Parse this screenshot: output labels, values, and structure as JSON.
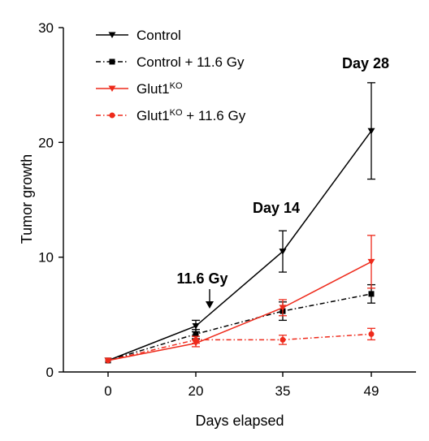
{
  "chart_data": {
    "type": "line",
    "xlabel": "Days elapsed",
    "ylabel": "Tumor  growth",
    "x": [
      0,
      20,
      35,
      49
    ],
    "x_tick_labels": [
      "0",
      "20",
      "35",
      "49"
    ],
    "ylim": [
      0,
      30
    ],
    "y_ticks": [
      0,
      10,
      20,
      30
    ],
    "y_tick_labels": [
      "0",
      "10",
      "20",
      "30"
    ],
    "grid": false,
    "legend_position": "top-left",
    "series": [
      {
        "name": "Control",
        "values": [
          1.0,
          4.0,
          10.5,
          21.0
        ],
        "errors": [
          0.1,
          0.5,
          1.8,
          4.2
        ],
        "color": "#000000",
        "line_style": "solid",
        "marker": "triangle-down"
      },
      {
        "name": "Control + 11.6 Gy",
        "values": [
          1.0,
          3.3,
          5.3,
          6.8
        ],
        "errors": [
          0.1,
          0.4,
          0.8,
          0.8
        ],
        "color": "#000000",
        "line_style": "dash-dot",
        "marker": "square"
      },
      {
        "name": "Glut1",
        "name_superscript": "KO",
        "values": [
          1.0,
          2.5,
          5.6,
          9.6
        ],
        "errors": [
          0.1,
          0.3,
          0.7,
          2.3
        ],
        "color": "#ee2a1b",
        "line_style": "solid",
        "marker": "triangle-down"
      },
      {
        "name": "Glut1",
        "name_superscript": "KO",
        "name_suffix": " + 11.6 Gy",
        "values": [
          1.0,
          2.8,
          2.8,
          3.3
        ],
        "errors": [
          0.1,
          0.3,
          0.4,
          0.5
        ],
        "color": "#ee2a1b",
        "line_style": "dash-dot",
        "marker": "circle"
      }
    ],
    "annotations": [
      {
        "text": "Day 28"
      },
      {
        "text": "Day 14"
      },
      {
        "text": "11.6 Gy"
      }
    ]
  }
}
